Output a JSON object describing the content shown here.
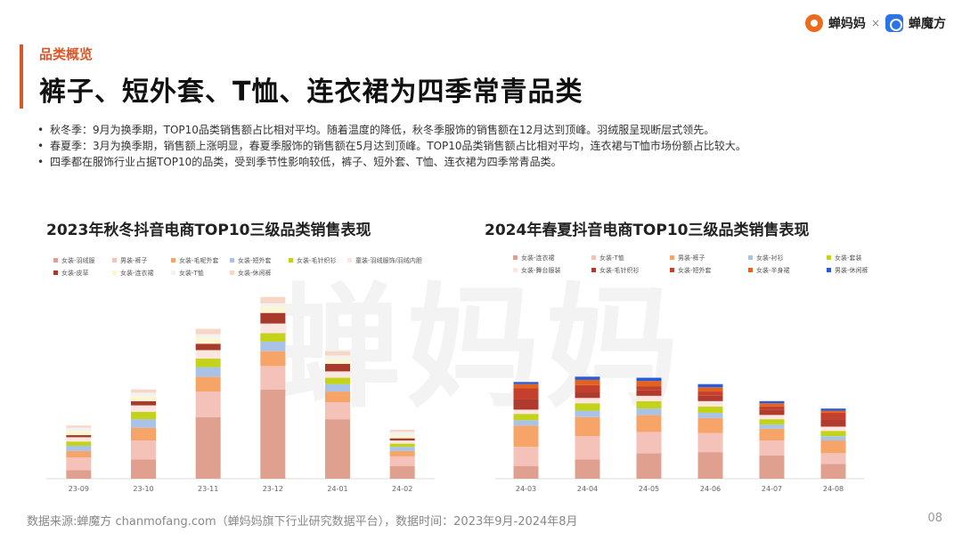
{
  "header": {
    "section_label": "品类概览",
    "title": "裤子、短外套、T恤、连衣裙为四季常青品类"
  },
  "brand": {
    "logo1_name": "蝉妈妈",
    "separator": "×",
    "logo2_name": "蝉魔方"
  },
  "bullets": [
    "秋冬季：9月为换季期，TOP10品类销售额占比相对平均。随着温度的降低，秋冬季服饰的销售额在12月达到顶峰。羽绒服呈现断层式领先。",
    "春夏季：3月为换季期，销售额上涨明显，春夏季服饰的销售额在5月达到顶峰。TOP10品类销售额占比相对平均，连衣裙与T恤市场份额占比较大。",
    "四季都在服饰行业占据TOP10的品类，受到季节性影响较低，裤子、短外套、T恤、连衣裙为四季常青品类。"
  ],
  "watermark": "蝉妈妈",
  "footer": {
    "source": "数据来源:蝉魔方 chanmofang.com（蝉妈妈旗下行业研究数据平台），数据时间：2023年9月-2024年8月",
    "page": "08"
  },
  "chart_data": [
    {
      "type": "bar",
      "stacked": true,
      "title": "2023年秋冬抖音电商TOP10三级品类销售表现",
      "categories": [
        "23-09",
        "23-10",
        "23-11",
        "23-12",
        "24-01",
        "24-02"
      ],
      "legend_position": "top",
      "legend_columns": 6,
      "ylim": [
        0,
        180
      ],
      "series": [
        {
          "name": "女装-羽绒服",
          "color": "#e0a090",
          "values": [
            8,
            18,
            58,
            84,
            56,
            12
          ]
        },
        {
          "name": "男装-裤子",
          "color": "#f4c2b8",
          "values": [
            12,
            18,
            24,
            22,
            16,
            9
          ]
        },
        {
          "name": "女装-毛呢外套",
          "color": "#f7a468",
          "values": [
            6,
            12,
            14,
            14,
            10,
            5
          ]
        },
        {
          "name": "女装-短外套",
          "color": "#a9c3e8",
          "values": [
            5,
            8,
            9,
            9,
            7,
            4
          ]
        },
        {
          "name": "女装-毛针织衫",
          "color": "#c3d319",
          "values": [
            4,
            7,
            8,
            8,
            6,
            3
          ]
        },
        {
          "name": "童装-羽绒服饰/羽绒内胆",
          "color": "#fbe6e1",
          "values": [
            4,
            6,
            8,
            9,
            6,
            3
          ]
        },
        {
          "name": "女装-皮草",
          "color": "#a83a2c",
          "values": [
            2,
            4,
            6,
            10,
            7,
            2
          ]
        },
        {
          "name": "女装-连衣裙",
          "color": "#fdf6d2",
          "values": [
            4,
            5,
            6,
            6,
            5,
            3
          ]
        },
        {
          "name": "女装-T恤",
          "color": "#f2f2f2",
          "values": [
            3,
            3,
            3,
            3,
            3,
            3
          ]
        },
        {
          "name": "女装-休闲裤",
          "color": "#f8d6c6",
          "values": [
            2,
            3,
            5,
            6,
            4,
            2
          ]
        }
      ]
    },
    {
      "type": "bar",
      "stacked": true,
      "title": "2024年春夏抖音电商TOP10三级品类销售表现",
      "categories": [
        "24-03",
        "24-04",
        "24-05",
        "24-06",
        "24-07",
        "24-08"
      ],
      "legend_position": "top",
      "legend_columns": 5,
      "ylim": [
        0,
        180
      ],
      "series": [
        {
          "name": "女装-连衣裙",
          "color": "#e0a090",
          "values": [
            12,
            18,
            24,
            25,
            22,
            14
          ]
        },
        {
          "name": "女装-T恤",
          "color": "#f4c2b8",
          "values": [
            18,
            22,
            20,
            18,
            14,
            10
          ]
        },
        {
          "name": "男装-裤子",
          "color": "#f7a468",
          "values": [
            20,
            18,
            16,
            14,
            11,
            12
          ]
        },
        {
          "name": "女装-衬衫",
          "color": "#a9c3e8",
          "values": [
            5,
            6,
            6,
            5,
            4,
            4
          ]
        },
        {
          "name": "女装-套装",
          "color": "#c3d319",
          "values": [
            6,
            7,
            7,
            6,
            5,
            5
          ]
        },
        {
          "name": "女装-舞台服装",
          "color": "#fbe6e1",
          "values": [
            4,
            5,
            5,
            5,
            4,
            4
          ]
        },
        {
          "name": "女装-毛针织衫",
          "color": "#b03a2e",
          "values": [
            10,
            6,
            5,
            5,
            5,
            7
          ]
        },
        {
          "name": "女装-短外套",
          "color": "#c4402c",
          "values": [
            10,
            6,
            4,
            4,
            3,
            6
          ]
        },
        {
          "name": "女装-半身裙",
          "color": "#e2631f",
          "values": [
            4,
            5,
            5,
            4,
            3,
            2
          ]
        },
        {
          "name": "男装-休闲裤",
          "color": "#2a5bd7",
          "values": [
            2,
            3,
            3,
            3,
            2,
            2
          ]
        }
      ]
    }
  ]
}
